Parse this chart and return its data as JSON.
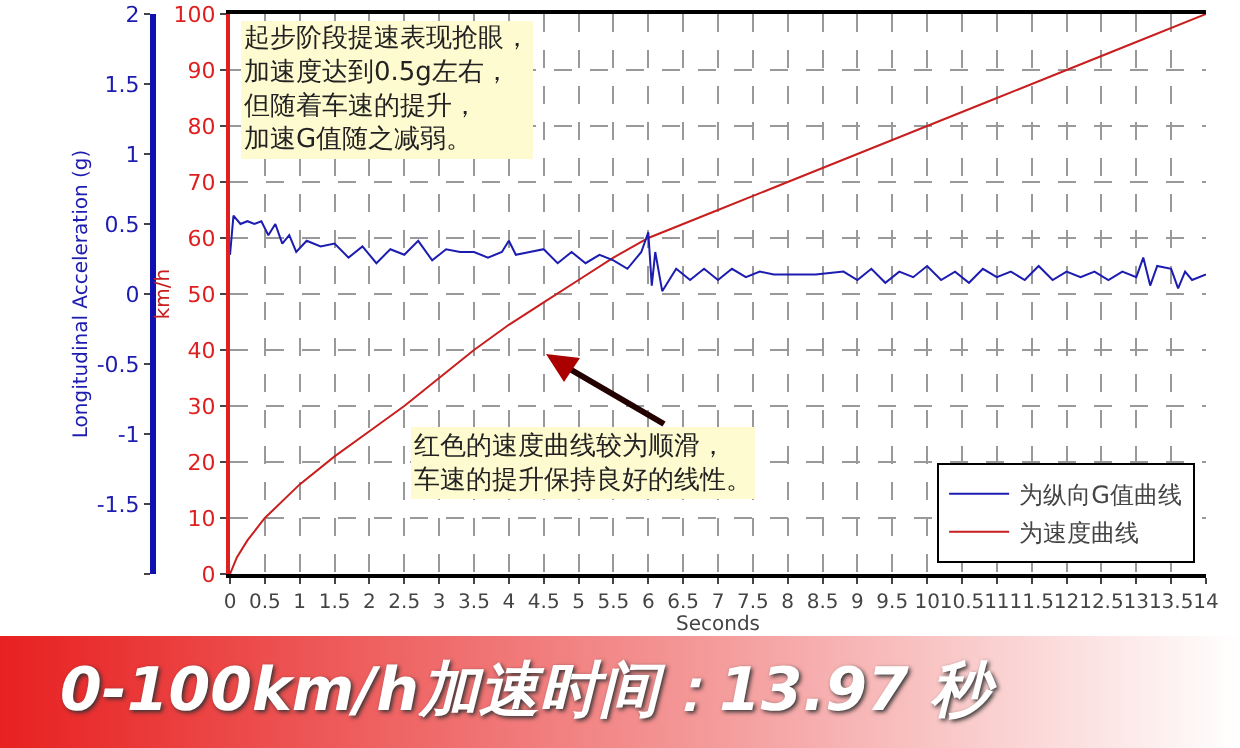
{
  "chart_data": {
    "type": "line",
    "xlabel": "Seconds",
    "ylabel": "km/h",
    "y2label": "Longitudinal Acceleration (g)",
    "xlim": [
      0,
      14
    ],
    "xticks": [
      0,
      0.5,
      1,
      1.5,
      2,
      2.5,
      3,
      3.5,
      4,
      4.5,
      5,
      5.5,
      6,
      6.5,
      7,
      7.5,
      8,
      8.5,
      9,
      9.5,
      10,
      10.5,
      11,
      11.5,
      12,
      12.5,
      13,
      13.5,
      14
    ],
    "ylim": [
      0,
      100
    ],
    "yticks": [
      0,
      10,
      20,
      30,
      40,
      50,
      60,
      70,
      80,
      90,
      100
    ],
    "y2lim": [
      -2,
      2
    ],
    "y2ticks": [
      {
        "value": -2,
        "label": null
      },
      -1.5,
      -1,
      -0.5,
      0,
      0.5,
      1,
      1.5,
      2
    ],
    "grid": true,
    "legend": "bottom right",
    "series": [
      {
        "name": "为纵向G值曲线",
        "color": "#1c1cb0",
        "axis": "y2",
        "x": [
          0,
          0.05,
          0.15,
          0.25,
          0.35,
          0.45,
          0.55,
          0.65,
          0.75,
          0.85,
          0.95,
          1.1,
          1.3,
          1.5,
          1.7,
          1.9,
          2.1,
          2.3,
          2.5,
          2.7,
          2.9,
          3.1,
          3.3,
          3.5,
          3.7,
          3.9,
          4.0,
          4.1,
          4.3,
          4.5,
          4.7,
          4.9,
          5.1,
          5.3,
          5.5,
          5.7,
          5.9,
          6.0,
          6.05,
          6.1,
          6.2,
          6.4,
          6.6,
          6.8,
          7.0,
          7.2,
          7.4,
          7.6,
          7.8,
          8.0,
          8.4,
          8.8,
          9.0,
          9.2,
          9.4,
          9.6,
          9.8,
          10.0,
          10.2,
          10.4,
          10.6,
          10.8,
          11.0,
          11.2,
          11.4,
          11.6,
          11.8,
          12.0,
          12.2,
          12.4,
          12.6,
          12.8,
          13.0,
          13.1,
          13.2,
          13.3,
          13.5,
          13.6,
          13.7,
          13.8,
          14.0
        ],
        "values": [
          0.28,
          0.56,
          0.5,
          0.52,
          0.5,
          0.52,
          0.42,
          0.5,
          0.36,
          0.42,
          0.3,
          0.38,
          0.34,
          0.36,
          0.26,
          0.34,
          0.22,
          0.32,
          0.28,
          0.38,
          0.24,
          0.32,
          0.3,
          0.3,
          0.26,
          0.3,
          0.38,
          0.28,
          0.3,
          0.32,
          0.22,
          0.3,
          0.22,
          0.28,
          0.24,
          0.18,
          0.3,
          0.44,
          0.06,
          0.3,
          0.02,
          0.18,
          0.1,
          0.18,
          0.1,
          0.18,
          0.12,
          0.16,
          0.14,
          0.14,
          0.14,
          0.16,
          0.1,
          0.18,
          0.08,
          0.16,
          0.12,
          0.2,
          0.1,
          0.16,
          0.08,
          0.18,
          0.12,
          0.16,
          0.1,
          0.2,
          0.1,
          0.16,
          0.12,
          0.16,
          0.1,
          0.16,
          0.12,
          0.26,
          0.06,
          0.2,
          0.18,
          0.04,
          0.16,
          0.1,
          0.14
        ]
      },
      {
        "name": "为速度曲线",
        "color": "#c81e1e",
        "axis": "y",
        "x": [
          0,
          0.1,
          0.25,
          0.5,
          1,
          1.5,
          2,
          2.5,
          3,
          3.5,
          4,
          4.5,
          5,
          5.5,
          6,
          7,
          8,
          9,
          10,
          11,
          12,
          13,
          14
        ],
        "values": [
          0,
          3,
          6,
          10,
          16,
          21,
          25.5,
          30,
          35,
          40,
          44.5,
          48.5,
          52.5,
          56.5,
          60,
          65,
          70,
          75,
          80,
          85,
          90,
          95,
          100
        ]
      }
    ],
    "annotations": [
      "起步阶段提速表现抢眼，加速度达到0.5g左右，但随着车速的提升，加速G值随之减弱。",
      "红色的速度曲线较为顺滑，车速的提升保持良好的线性。",
      "0-100km/h加速时间：13.97 秒"
    ]
  }
}
